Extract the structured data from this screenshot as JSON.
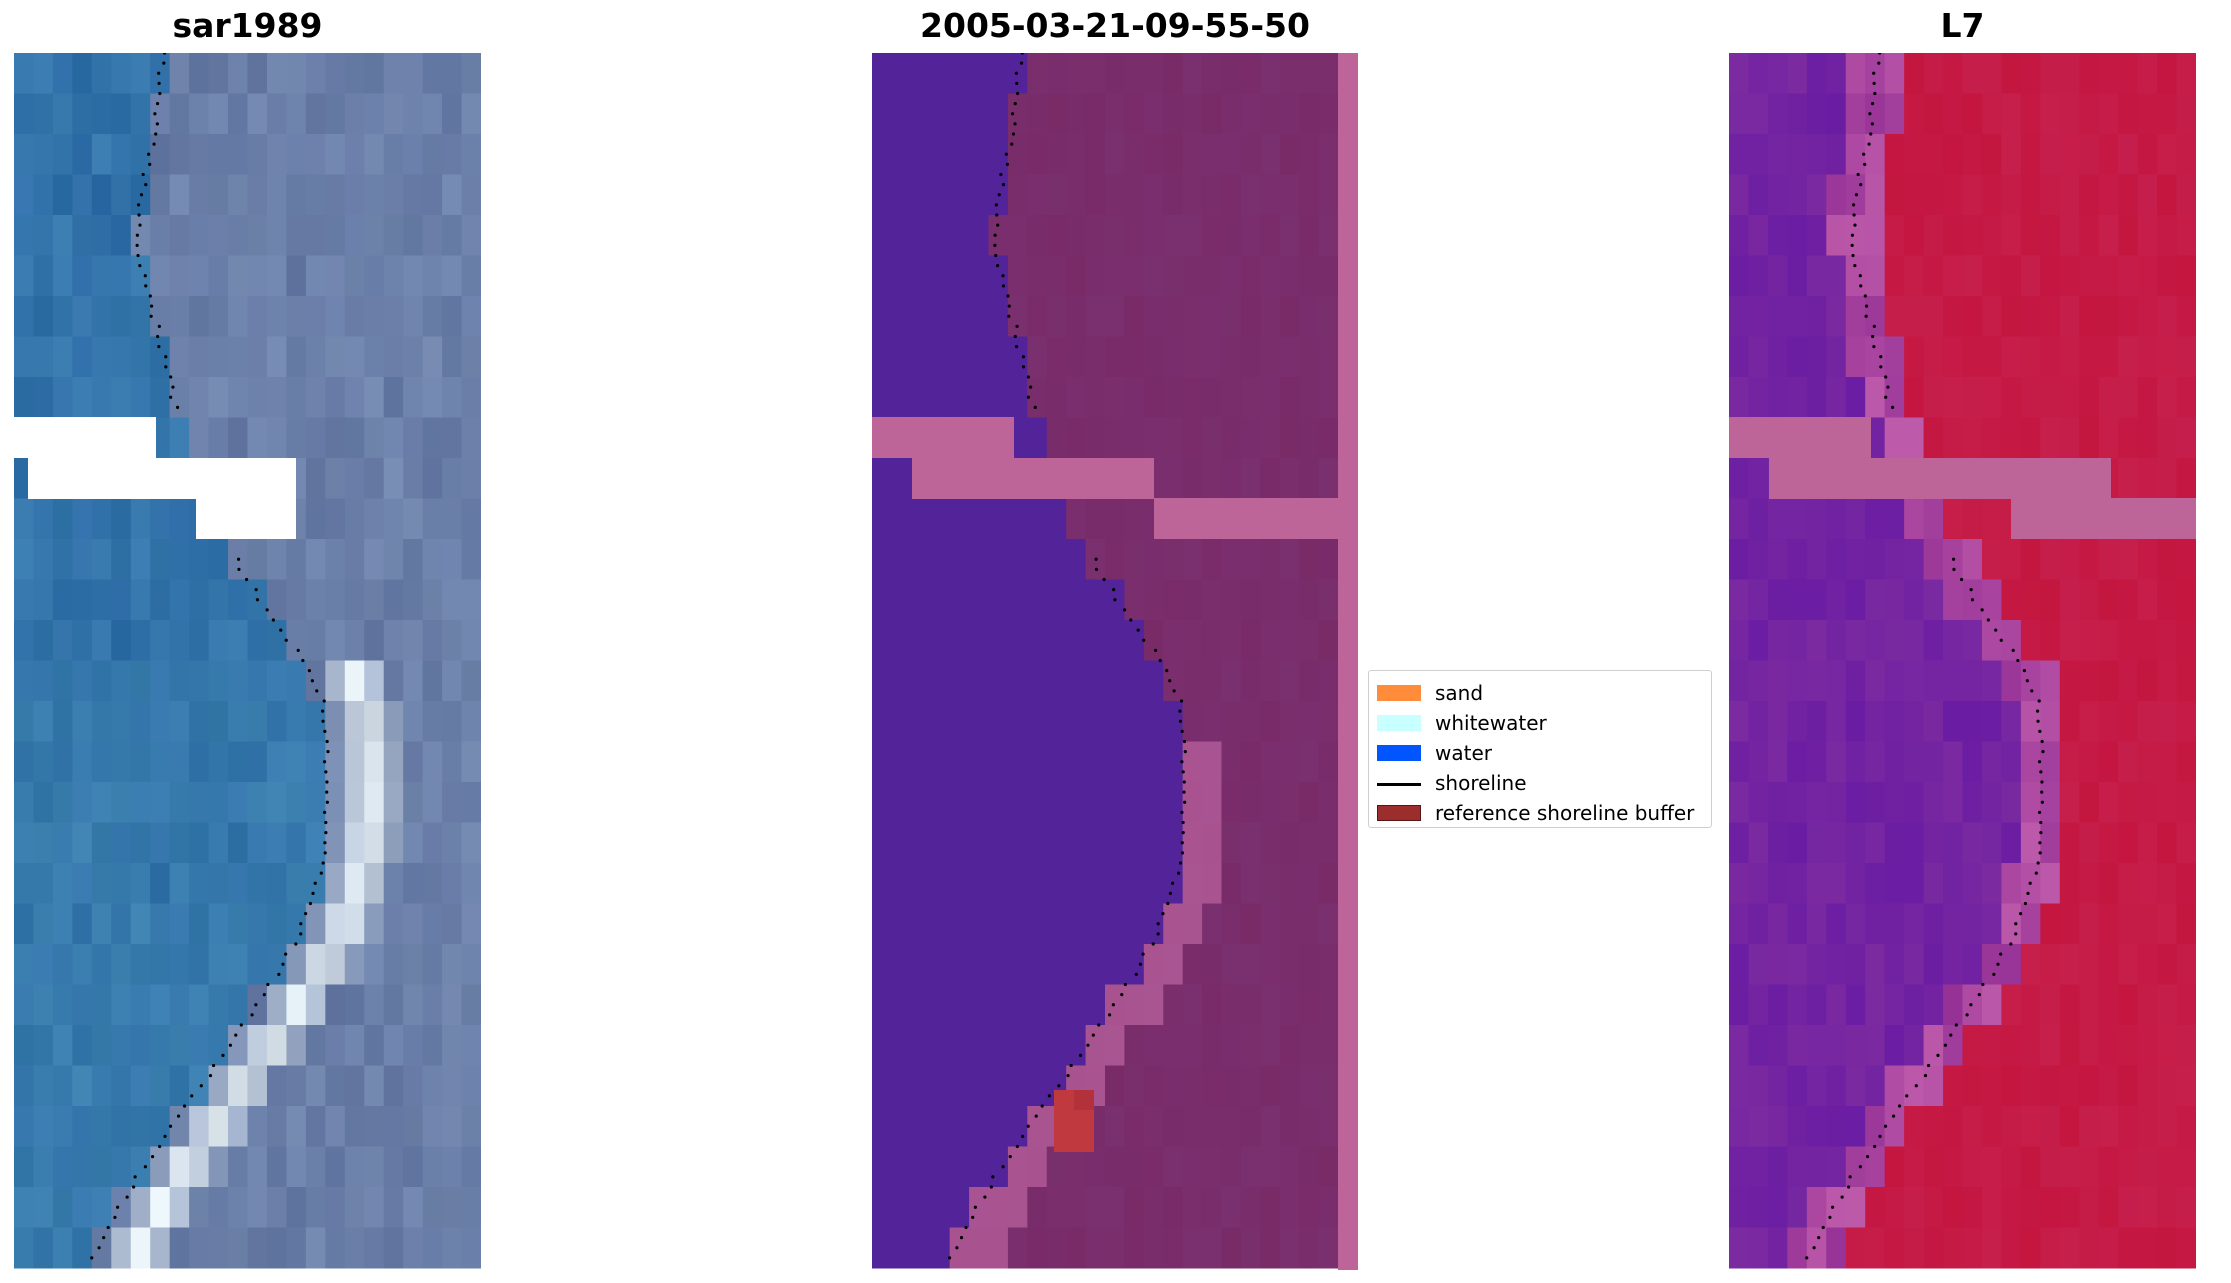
{
  "panels": [
    {
      "title": "sar1989",
      "kind": "rgb"
    },
    {
      "title": "2005-03-21-09-55-50",
      "kind": "classified"
    },
    {
      "title": "L7",
      "kind": "index"
    }
  ],
  "legend": {
    "items": [
      {
        "label": "sand",
        "type": "patch",
        "color": "#ff8c3a"
      },
      {
        "label": "whitewater",
        "type": "patch",
        "color": "#c8ffff"
      },
      {
        "label": "water",
        "type": "patch",
        "color": "#0055ff"
      },
      {
        "label": "shoreline",
        "type": "line",
        "color": "#000000"
      },
      {
        "label": "reference shoreline buffer",
        "type": "patch",
        "color": "#9b2d2d",
        "edge": "#5a1515"
      }
    ]
  },
  "colors": {
    "nodata_band": "#bd6598",
    "water_class": "#53239a",
    "land_class": "#7a2f6e",
    "buffer_hit": "#c0393f",
    "index_water": "#7b2aa0",
    "index_land": "#c4163f",
    "rgb_water": "#2f6ea8",
    "rgb_land": "#7186ad",
    "rgb_surf": "#e9f2f6"
  }
}
